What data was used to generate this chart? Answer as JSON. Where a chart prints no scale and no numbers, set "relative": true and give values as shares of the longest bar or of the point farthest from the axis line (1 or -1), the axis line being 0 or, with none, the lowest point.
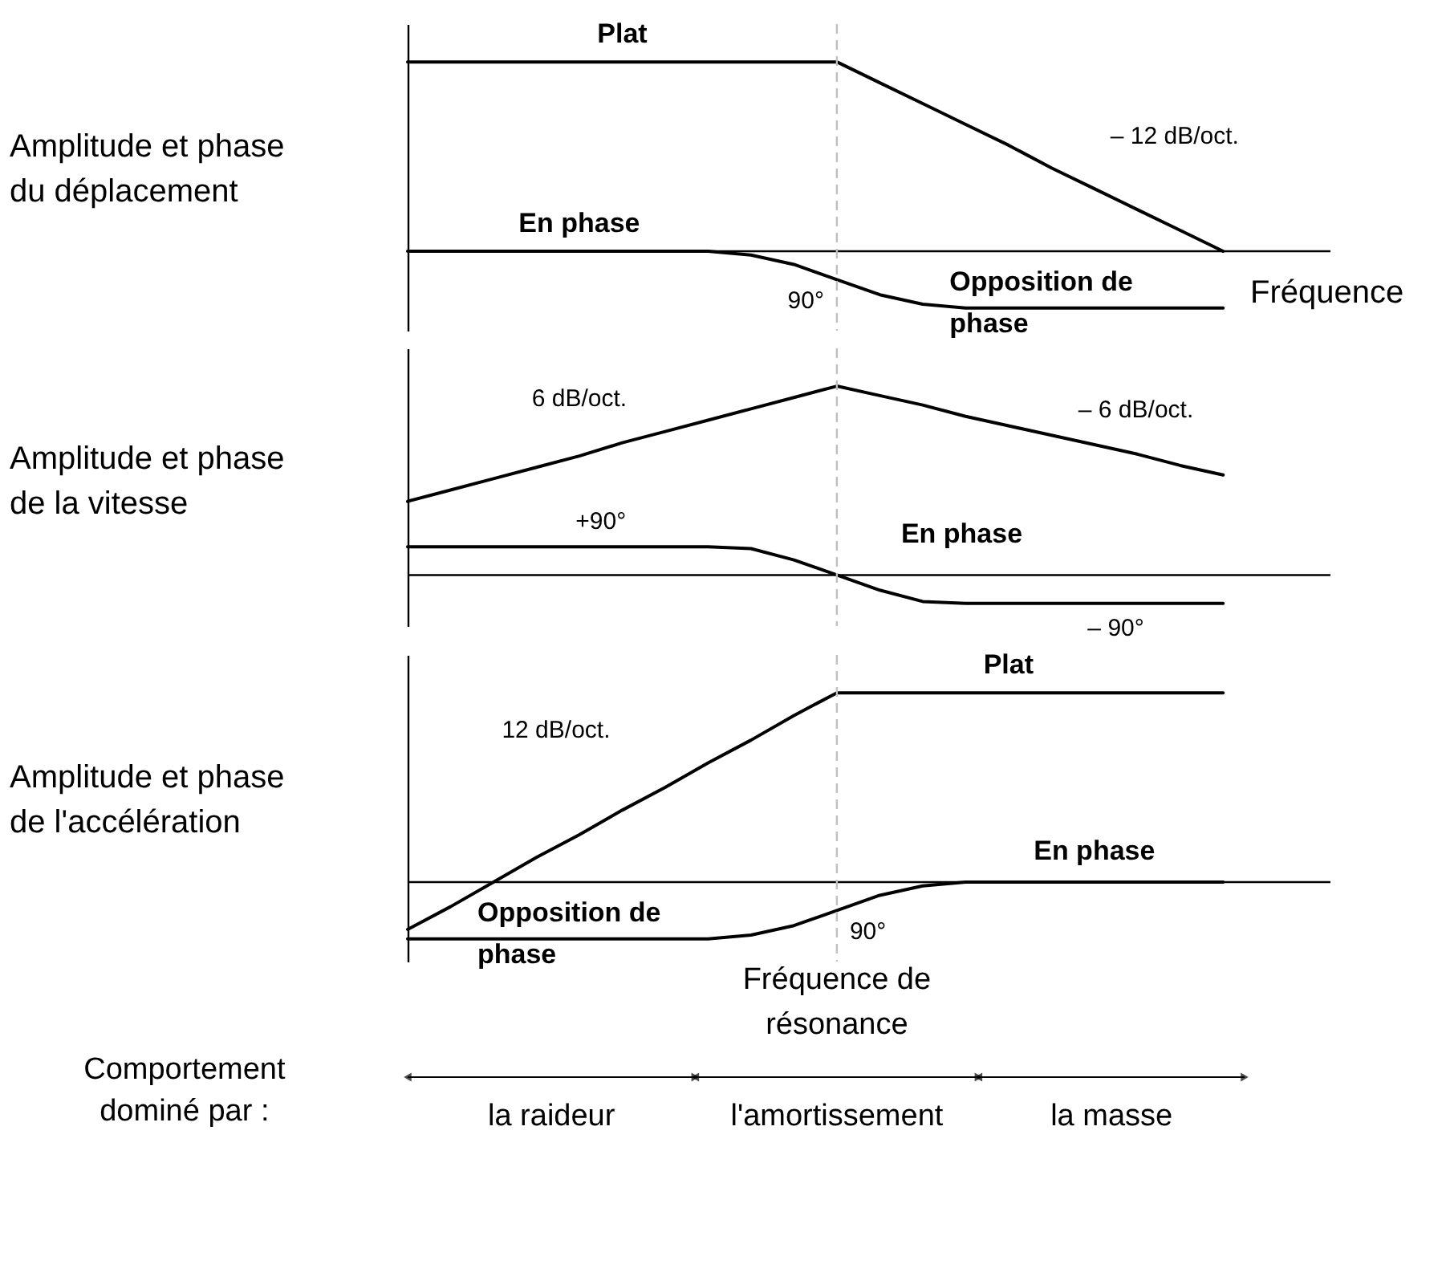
{
  "chart_data": [
    {
      "type": "line",
      "relative": true,
      "xlabel": "Fréquence",
      "ylabel": "Amplitude et phase du déplacement",
      "categories": [
        null,
        null,
        null,
        null,
        null,
        null,
        null,
        null,
        null,
        null,
        null,
        null,
        null,
        null,
        null,
        null,
        null,
        null,
        null,
        null,
        null
      ],
      "series": [
        {
          "color": "#000000",
          "values": [
            1,
            1,
            1,
            1,
            1,
            1,
            1,
            1,
            1,
            1,
            1,
            0.89,
            0.78,
            0.67,
            0.56,
            0.44,
            0.33,
            0.22,
            0.11,
            0,
            null
          ]
        },
        {
          "color": "#000000",
          "values": [
            0,
            0,
            0,
            0,
            0,
            0,
            0,
            0,
            -0.02,
            -0.07,
            -0.15,
            -0.23,
            -0.28,
            -0.3,
            -0.3,
            -0.3,
            -0.3,
            -0.3,
            -0.3,
            -0.3,
            null
          ]
        }
      ],
      "ref_lines": [
        {
          "axis": "x",
          "color": "#bfbfbf",
          "line_style": "dashed"
        }
      ],
      "annotations": [
        "Plat",
        "– 12 dB/oct.",
        "En phase",
        "90°",
        "Opposition de phase"
      ]
    },
    {
      "type": "line",
      "relative": true,
      "ylabel": "Amplitude et phase de la vitesse",
      "categories": [
        null,
        null,
        null,
        null,
        null,
        null,
        null,
        null,
        null,
        null,
        null,
        null,
        null,
        null,
        null,
        null,
        null,
        null,
        null,
        null,
        null
      ],
      "series": [
        {
          "color": "#000000",
          "values": [
            0.39,
            0.45,
            0.51,
            0.57,
            0.63,
            0.7,
            0.76,
            0.82,
            0.88,
            0.94,
            1,
            0.95,
            0.9,
            0.84,
            0.79,
            0.74,
            0.69,
            0.64,
            0.58,
            0.53,
            null
          ]
        },
        {
          "color": "#000000",
          "values": [
            0.15,
            0.15,
            0.15,
            0.15,
            0.15,
            0.15,
            0.15,
            0.15,
            0.14,
            0.08,
            0,
            -0.08,
            -0.14,
            -0.15,
            -0.15,
            -0.15,
            -0.15,
            -0.15,
            -0.15,
            -0.15,
            null
          ]
        }
      ],
      "ref_lines": [
        {
          "axis": "x",
          "color": "#bfbfbf",
          "line_style": "dashed"
        }
      ],
      "annotations": [
        "6 dB/oct.",
        "– 6 dB/oct.",
        "+90°",
        "En phase",
        "– 90°"
      ]
    },
    {
      "type": "line",
      "relative": true,
      "ylabel": "Amplitude et phase de l'accélération",
      "categories": [
        null,
        null,
        null,
        null,
        null,
        null,
        null,
        null,
        null,
        null,
        null,
        null,
        null,
        null,
        null,
        null,
        null,
        null,
        null,
        null,
        null
      ],
      "series": [
        {
          "color": "#000000",
          "values": [
            -0.25,
            -0.13,
            0,
            0.13,
            0.25,
            0.38,
            0.5,
            0.63,
            0.75,
            0.88,
            1,
            1,
            1,
            1,
            1,
            1,
            1,
            1,
            1,
            1,
            null
          ]
        },
        {
          "color": "#000000",
          "values": [
            -0.3,
            -0.3,
            -0.3,
            -0.3,
            -0.3,
            -0.3,
            -0.3,
            -0.3,
            -0.28,
            -0.23,
            -0.15,
            -0.07,
            -0.02,
            0,
            0,
            0,
            0,
            0,
            0,
            0,
            null
          ]
        }
      ],
      "ref_lines": [
        {
          "axis": "x",
          "color": "#bfbfbf",
          "line_style": "dashed",
          "label": "Fréquence de résonance"
        }
      ],
      "annotations": [
        "Plat",
        "12 dB/oct.",
        "En phase",
        "Opposition de phase",
        "90°",
        "Comportement dominé par :",
        "la raideur",
        "l'amortissement",
        "la masse"
      ]
    }
  ]
}
